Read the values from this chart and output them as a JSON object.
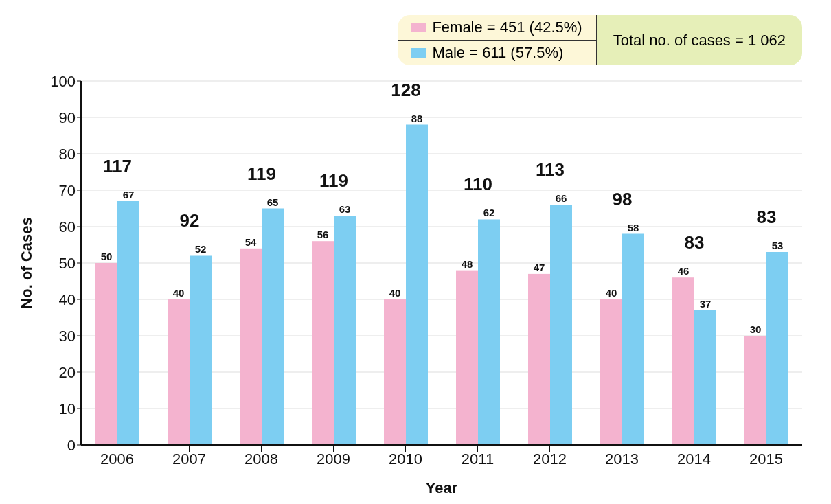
{
  "chart_data": {
    "type": "bar",
    "xlabel": "Year",
    "ylabel": "No. of Cases",
    "categories": [
      "2006",
      "2007",
      "2008",
      "2009",
      "2010",
      "2011",
      "2012",
      "2013",
      "2014",
      "2015"
    ],
    "series": [
      {
        "name": "Female = 451 (42.5%)",
        "color": "#f4b3cf",
        "values": [
          50,
          40,
          54,
          56,
          40,
          48,
          47,
          40,
          46,
          30
        ]
      },
      {
        "name": "Male = 611 (57.5%)",
        "color": "#7dcef2",
        "values": [
          67,
          52,
          65,
          63,
          88,
          62,
          66,
          58,
          37,
          53
        ]
      }
    ],
    "totals": [
      "117",
      "92",
      "119",
      "119",
      "128",
      "110",
      "113",
      "98",
      "83",
      "83"
    ],
    "annotations": [
      "Total no. of cases = 1 062"
    ],
    "ylim": [
      0,
      100
    ],
    "yticks": [
      0,
      10,
      20,
      30,
      40,
      50,
      60,
      70,
      80,
      90,
      100
    ],
    "grid": "y",
    "legend": "top right",
    "data_labels": true
  }
}
